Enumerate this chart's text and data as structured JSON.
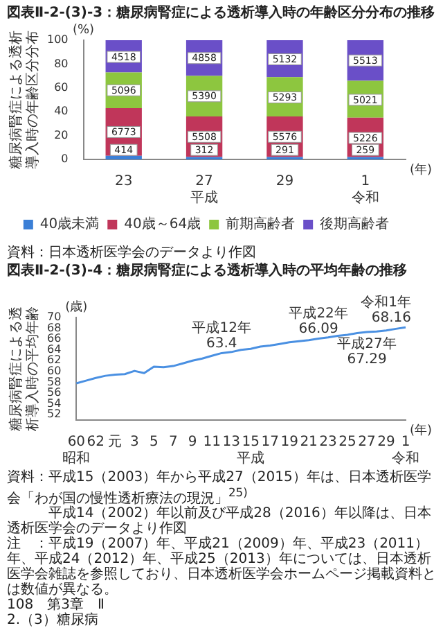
{
  "chart_data": [
    {
      "type": "bar",
      "title": "図表Ⅱ-2-(3)-3：糖尿病腎症による透析導入時の年齢区分分布の推移",
      "ylabel": "糖尿病腎症による透析導入時の年齢区分分布",
      "categories": [
        "23",
        "27\n平成",
        "29",
        "1\n令和"
      ],
      "stacked": true,
      "legend": "bottom",
      "ylim": [
        0,
        100
      ],
      "yticks": [
        0,
        20,
        40,
        60,
        80,
        100
      ],
      "series": [
        {
          "name": "40歳未満",
          "color": "#3b7fd6",
          "values": [
            3,
            2,
            2,
            2
          ]
        },
        {
          "name": "40歳～64歳",
          "color": "#c0365a",
          "values": [
            40,
            34,
            34,
            33
          ]
        },
        {
          "name": "前期高齢者",
          "color": "#8dc63f",
          "values": [
            30,
            34,
            33,
            31
          ]
        },
        {
          "name": "後期高齢者",
          "color": "#6a4fc8",
          "values": [
            27,
            30,
            31,
            34
          ]
        }
      ],
      "annotations": [
        "(%)",
        "(年)",
        {
          "text": "414",
          "x": "23",
          "y": 8
        },
        {
          "text": "312",
          "x": "27\n平成",
          "y": 8
        },
        {
          "text": "291",
          "x": "29",
          "y": 8
        },
        {
          "text": "259",
          "x": "1\n令和",
          "y": 8
        },
        {
          "text": "6773",
          "x": "23",
          "y": 23
        },
        {
          "text": "5508",
          "x": "27\n平成",
          "y": 19
        },
        {
          "text": "5576",
          "x": "29",
          "y": 19
        },
        {
          "text": "5226",
          "x": "1\n令和",
          "y": 18
        },
        {
          "text": "5096",
          "x": "23",
          "y": 58
        },
        {
          "text": "5390",
          "x": "27\n平成",
          "y": 53
        },
        {
          "text": "5293",
          "x": "29",
          "y": 52
        },
        {
          "text": "5021",
          "x": "1\n令和",
          "y": 50
        },
        {
          "text": "4518",
          "x": "23",
          "y": 86
        },
        {
          "text": "4858",
          "x": "27\n平成",
          "y": 85
        },
        {
          "text": "5132",
          "x": "29",
          "y": 84
        },
        {
          "text": "5513",
          "x": "1\n令和",
          "y": 83
        },
        "資料：日本透析医学会のデータより作図"
      ]
    },
    {
      "type": "line",
      "title": "図表Ⅱ-2-(3)-4：糖尿病腎症による透析導入時の平均年齢の推移",
      "ylabel": "糖尿病腎症による透析導入時の平均年齢",
      "categories": [
        "60\n昭和",
        null,
        "62",
        null,
        "元",
        null,
        "3",
        null,
        "5",
        null,
        "7",
        null,
        "9",
        null,
        "11",
        null,
        "13",
        null,
        "15\n平成",
        null,
        "17",
        null,
        "19",
        null,
        "21",
        null,
        "23",
        null,
        "25",
        null,
        "27",
        null,
        "29",
        null,
        "1\n令和"
      ],
      "ylim": [
        51,
        70
      ],
      "yticks": [
        52,
        54,
        56,
        58,
        60,
        62,
        64,
        66,
        68,
        70
      ],
      "marker": "none",
      "series": [
        {
          "color": "#4a90e2",
          "values": [
            57.8,
            58.3,
            58.8,
            59.2,
            59.4,
            59.5,
            60.1,
            59.7,
            60.9,
            60.8,
            61.0,
            61.5,
            62.0,
            62.4,
            62.9,
            63.4,
            63.6,
            64.0,
            64.2,
            64.6,
            64.8,
            65.1,
            65.4,
            65.6,
            65.8,
            66.09,
            66.3,
            66.6,
            66.8,
            67.1,
            67.29,
            67.4,
            67.6,
            67.9,
            68.16
          ],
          "value_labels": [
            null,
            null,
            null,
            null,
            null,
            null,
            null,
            null,
            null,
            null,
            null,
            null,
            null,
            null,
            null,
            "平成12年\n63.4",
            null,
            null,
            null,
            null,
            null,
            null,
            null,
            null,
            null,
            "平成22年\n66.09",
            null,
            null,
            null,
            null,
            "平成27年\n67.29",
            null,
            null,
            null,
            "令和1年\n68.16"
          ]
        }
      ],
      "annotations": [
        "(歳)",
        "(年)",
        "資料：平成15（2003）年から平成27（2015）年は、日本透析医学会「わが国の慢性透析療法の現況」$^{25)}$",
        "　　　平成14（2002）年以前及び平成28（2016）年以降は、日本透析医学会のデータより作図",
        "注　：平成19（2007）年、平成21（2009）年、平成23（2011）年、平成24（2012）年、平成25（2013）年については、日本透析医学会雑誌を参照しており、日本透析医学会ホームページ掲載資料とは数値が異なる。",
        "108　第3章　Ⅱ",
        "2.（3）糖尿病"
      ]
    }
  ]
}
